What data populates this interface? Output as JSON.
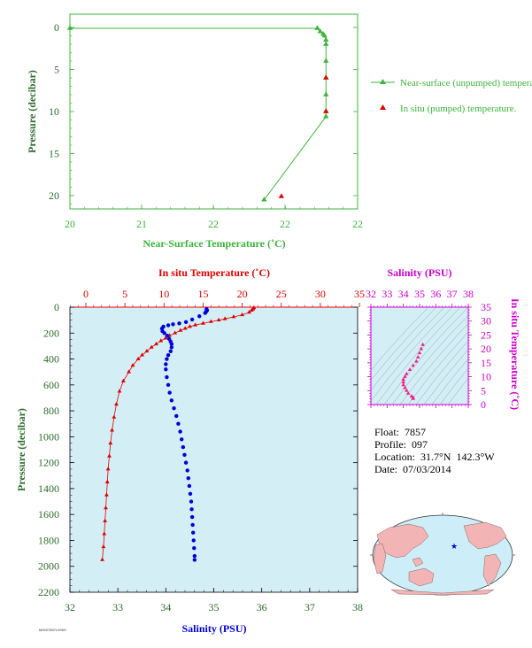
{
  "float_info": {
    "float_line": "Float:  7857",
    "profile_line": "Profile:  097",
    "location_line": "Location:  31.7°N  142.3°W",
    "date_line": "Date:  07/03/2014"
  },
  "footer_code": "M0007857L096H",
  "colors": {
    "green": "#3cb43c",
    "red": "#e00000",
    "blue": "#0000dd",
    "magenta": "#cc00cc",
    "pink": "#ee2288",
    "plot_bg": "#d4eef6",
    "axis_text": "#2d6b2d",
    "land": "#f2b4b4",
    "ocean": "#cdeef8"
  },
  "chart_data": [
    {
      "type": "line",
      "xlabel": "Near-Surface Temperature (˚C)",
      "ylabel": "Pressure (decibar)",
      "xlim": [
        20,
        22
      ],
      "ylim": [
        0,
        22
      ],
      "y_inverted": true,
      "x_ticks": [
        "20",
        "21",
        "22",
        "22"
      ],
      "y_ticks": [
        "0",
        "5",
        "10",
        "15",
        "20"
      ],
      "series": [
        {
          "name": "Near-surface (unpumped) temperature.",
          "marker": "triangle",
          "color": "#3cb43c",
          "points": [
            [
              20.0,
              0.1
            ],
            [
              21.72,
              0.1
            ],
            [
              21.74,
              0.5
            ],
            [
              21.76,
              0.8
            ],
            [
              21.77,
              1.0
            ],
            [
              21.78,
              1.5
            ],
            [
              21.78,
              2.0
            ],
            [
              21.78,
              4.0
            ],
            [
              21.78,
              6.0
            ],
            [
              21.78,
              8.0
            ],
            [
              21.78,
              10.0
            ],
            [
              21.78,
              10.6
            ],
            [
              21.35,
              20.5
            ]
          ]
        },
        {
          "name": "In situ (pumped) temperature.",
          "marker": "triangle",
          "color": "#e00000",
          "points": [
            [
              21.78,
              6.0
            ],
            [
              21.78,
              10.0
            ],
            [
              21.47,
              20.1
            ]
          ]
        }
      ]
    },
    {
      "type": "scatter",
      "xlabel": "Salinity (PSU)",
      "x2label": "In situ Temperature (˚C)",
      "ylabel": "Pressure (decibar)",
      "xlim": [
        32,
        38
      ],
      "x2lim": [
        0,
        35
      ],
      "ylim": [
        0,
        2200
      ],
      "y_inverted": true,
      "x_ticks": [
        "32",
        "33",
        "34",
        "35",
        "36",
        "37",
        "38"
      ],
      "x2_ticks": [
        "0",
        "5",
        "10",
        "15",
        "20",
        "25",
        "30",
        "35"
      ],
      "y_ticks": [
        "0",
        "200",
        "400",
        "600",
        "800",
        "1000",
        "1200",
        "1400",
        "1600",
        "1800",
        "2000",
        "2200"
      ],
      "temperature": {
        "color": "#e00000",
        "points": [
          [
            21.5,
            5
          ],
          [
            21.4,
            15
          ],
          [
            21.2,
            25
          ],
          [
            20.9,
            40
          ],
          [
            20.0,
            60
          ],
          [
            18.9,
            75
          ],
          [
            17.8,
            90
          ],
          [
            17.0,
            100
          ],
          [
            16.0,
            112
          ],
          [
            15.0,
            125
          ],
          [
            14.0,
            138
          ],
          [
            13.3,
            150
          ],
          [
            12.7,
            165
          ],
          [
            12.1,
            180
          ],
          [
            11.4,
            200
          ],
          [
            10.7,
            220
          ],
          [
            10.2,
            240
          ],
          [
            9.6,
            260
          ],
          [
            9.0,
            285
          ],
          [
            8.4,
            310
          ],
          [
            7.8,
            340
          ],
          [
            7.2,
            370
          ],
          [
            6.7,
            400
          ],
          [
            6.0,
            450
          ],
          [
            5.5,
            500
          ],
          [
            4.8,
            570
          ],
          [
            4.3,
            650
          ],
          [
            3.9,
            750
          ],
          [
            3.6,
            850
          ],
          [
            3.35,
            950
          ],
          [
            3.15,
            1050
          ],
          [
            3.0,
            1150
          ],
          [
            2.85,
            1250
          ],
          [
            2.75,
            1350
          ],
          [
            2.65,
            1450
          ],
          [
            2.55,
            1550
          ],
          [
            2.45,
            1650
          ],
          [
            2.35,
            1750
          ],
          [
            2.25,
            1850
          ],
          [
            2.1,
            1950
          ]
        ]
      },
      "salinity": {
        "color": "#0000dd",
        "points": [
          [
            34.85,
            15
          ],
          [
            34.86,
            25
          ],
          [
            34.84,
            35
          ],
          [
            34.82,
            45
          ],
          [
            34.7,
            70
          ],
          [
            34.55,
            95
          ],
          [
            34.42,
            115
          ],
          [
            34.28,
            125
          ],
          [
            34.15,
            132
          ],
          [
            34.05,
            140
          ],
          [
            33.95,
            150
          ],
          [
            33.92,
            165
          ],
          [
            33.93,
            185
          ],
          [
            33.97,
            200
          ],
          [
            34.03,
            220
          ],
          [
            34.07,
            245
          ],
          [
            34.1,
            265
          ],
          [
            34.12,
            285
          ],
          [
            34.12,
            310
          ],
          [
            34.1,
            340
          ],
          [
            34.05,
            370
          ],
          [
            34.02,
            400
          ],
          [
            34.0,
            440
          ],
          [
            34.0,
            480
          ],
          [
            34.02,
            540
          ],
          [
            34.05,
            600
          ],
          [
            34.08,
            660
          ],
          [
            34.12,
            720
          ],
          [
            34.17,
            780
          ],
          [
            34.22,
            840
          ],
          [
            34.26,
            900
          ],
          [
            34.3,
            960
          ],
          [
            34.33,
            1020
          ],
          [
            34.36,
            1080
          ],
          [
            34.39,
            1140
          ],
          [
            34.42,
            1200
          ],
          [
            34.45,
            1260
          ],
          [
            34.47,
            1320
          ],
          [
            34.49,
            1380
          ],
          [
            34.51,
            1440
          ],
          [
            34.53,
            1500
          ],
          [
            34.54,
            1560
          ],
          [
            34.55,
            1620
          ],
          [
            34.56,
            1680
          ],
          [
            34.57,
            1740
          ],
          [
            34.58,
            1800
          ],
          [
            34.59,
            1860
          ],
          [
            34.6,
            1920
          ],
          [
            34.6,
            1950
          ]
        ]
      }
    },
    {
      "type": "scatter",
      "xlabel": "Salinity (PSU)",
      "ylabel": "In situ Temperature (˚C)",
      "xlim": [
        32,
        38
      ],
      "ylim": [
        0,
        35
      ],
      "x_ticks": [
        "32",
        "33",
        "34",
        "35",
        "36",
        "37",
        "38"
      ],
      "y_ticks": [
        "0",
        "5",
        "10",
        "15",
        "20",
        "25",
        "30",
        "35"
      ],
      "points": [
        [
          35.2,
          21.5
        ],
        [
          35.1,
          20.0
        ],
        [
          35.0,
          18.5
        ],
        [
          34.9,
          17.0
        ],
        [
          34.8,
          15.5
        ],
        [
          34.6,
          14.0
        ],
        [
          34.4,
          12.5
        ],
        [
          34.2,
          11.0
        ],
        [
          34.1,
          10.0
        ],
        [
          34.0,
          9.0
        ],
        [
          34.0,
          8.0
        ],
        [
          34.0,
          7.0
        ],
        [
          34.1,
          6.0
        ],
        [
          34.2,
          5.0
        ],
        [
          34.3,
          4.0
        ],
        [
          34.5,
          3.0
        ],
        [
          34.6,
          2.5
        ],
        [
          34.6,
          2.1
        ]
      ]
    }
  ]
}
